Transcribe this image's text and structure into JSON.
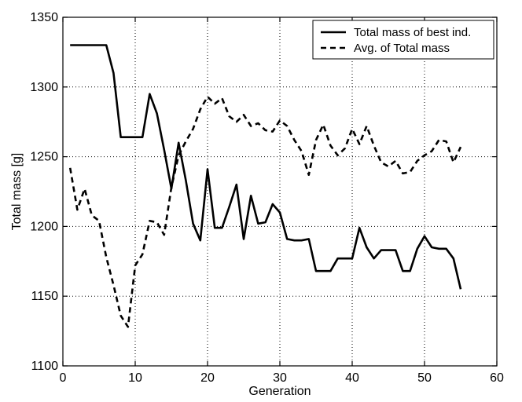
{
  "chart_data": {
    "type": "line",
    "title": "",
    "xlabel": "Generation",
    "ylabel": "Total mass [g]",
    "xlim": [
      0,
      60
    ],
    "ylim": [
      1100,
      1350
    ],
    "xticks": [
      0,
      10,
      20,
      30,
      40,
      50,
      60
    ],
    "yticks": [
      1100,
      1150,
      1200,
      1250,
      1300,
      1350
    ],
    "grid": true,
    "legend_position": "top-right",
    "series": [
      {
        "name": "Total mass of best ind.",
        "line_style": "solid",
        "color": "#000000",
        "x": [
          1,
          2,
          3,
          4,
          5,
          6,
          7,
          8,
          9,
          10,
          11,
          12,
          13,
          14,
          15,
          16,
          17,
          18,
          19,
          20,
          21,
          22,
          23,
          24,
          25,
          26,
          27,
          28,
          29,
          30,
          31,
          32,
          33,
          34,
          35,
          36,
          37,
          38,
          39,
          40,
          41,
          42,
          43,
          44,
          45,
          46,
          47,
          48,
          49,
          50,
          51,
          52,
          53,
          54,
          55
        ],
        "values": [
          1330,
          1330,
          1330,
          1330,
          1330,
          1330,
          1310,
          1264,
          1264,
          1264,
          1264,
          1295,
          1281,
          1255,
          1227,
          1260,
          1233,
          1202,
          1190,
          1241,
          1199,
          1199,
          1214,
          1230,
          1191,
          1222,
          1202,
          1203,
          1216,
          1210,
          1191,
          1190,
          1190,
          1191,
          1168,
          1168,
          1168,
          1177,
          1177,
          1177,
          1199,
          1185,
          1177,
          1183,
          1183,
          1183,
          1168,
          1168,
          1184,
          1193,
          1185,
          1184,
          1184,
          1177,
          1155
        ]
      },
      {
        "name": "Avg. of Total mass",
        "line_style": "dashed",
        "color": "#000000",
        "x": [
          1,
          2,
          3,
          4,
          5,
          6,
          7,
          8,
          9,
          10,
          11,
          12,
          13,
          14,
          15,
          16,
          17,
          18,
          19,
          20,
          21,
          22,
          23,
          24,
          25,
          26,
          27,
          28,
          29,
          30,
          31,
          32,
          33,
          34,
          35,
          36,
          37,
          38,
          39,
          40,
          41,
          42,
          43,
          44,
          45,
          46,
          47,
          48,
          49,
          50,
          51,
          52,
          53,
          54,
          55
        ],
        "values": [
          1242,
          1212,
          1227,
          1208,
          1204,
          1178,
          1158,
          1136,
          1128,
          1172,
          1180,
          1204,
          1203,
          1194,
          1228,
          1251,
          1261,
          1270,
          1284,
          1293,
          1288,
          1292,
          1279,
          1275,
          1280,
          1272,
          1274,
          1269,
          1268,
          1276,
          1272,
          1262,
          1254,
          1237,
          1262,
          1273,
          1258,
          1251,
          1256,
          1270,
          1259,
          1272,
          1258,
          1246,
          1243,
          1247,
          1238,
          1239,
          1247,
          1251,
          1254,
          1262,
          1261,
          1246,
          1257
        ]
      }
    ]
  }
}
